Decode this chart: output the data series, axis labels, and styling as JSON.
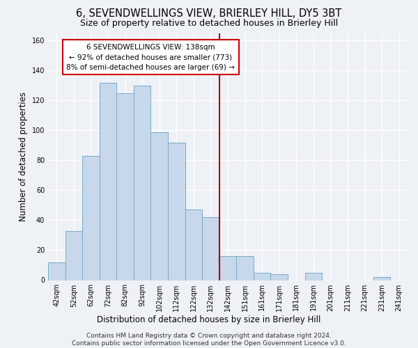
{
  "title": "6, SEVENDWELLINGS VIEW, BRIERLEY HILL, DY5 3BT",
  "subtitle": "Size of property relative to detached houses in Brierley Hill",
  "xlabel": "Distribution of detached houses by size in Brierley Hill",
  "ylabel": "Number of detached properties",
  "bar_color": "#c8d8eb",
  "bar_edge_color": "#7aaac8",
  "categories": [
    "42sqm",
    "52sqm",
    "62sqm",
    "72sqm",
    "82sqm",
    "92sqm",
    "102sqm",
    "112sqm",
    "122sqm",
    "132sqm",
    "142sqm",
    "151sqm",
    "161sqm",
    "171sqm",
    "181sqm",
    "191sqm",
    "201sqm",
    "211sqm",
    "221sqm",
    "231sqm",
    "241sqm"
  ],
  "values": [
    12,
    33,
    83,
    132,
    125,
    130,
    99,
    92,
    47,
    42,
    16,
    16,
    5,
    4,
    0,
    5,
    0,
    0,
    0,
    2,
    0
  ],
  "vline_x_index": 9.5,
  "vline_color": "#aa0000",
  "annotation_text": "6 SEVENDWELLINGS VIEW: 138sqm\n← 92% of detached houses are smaller (773)\n8% of semi-detached houses are larger (69) →",
  "annotation_box_color": "#ffffff",
  "annotation_box_edge": "#cc0000",
  "ylim": [
    0,
    165
  ],
  "yticks": [
    0,
    20,
    40,
    60,
    80,
    100,
    120,
    140,
    160
  ],
  "footer": "Contains HM Land Registry data © Crown copyright and database right 2024.\nContains public sector information licensed under the Open Government Licence v3.0.",
  "background_color": "#eef2f7",
  "grid_color": "#ffffff",
  "title_fontsize": 10.5,
  "subtitle_fontsize": 9,
  "axis_label_fontsize": 8.5,
  "tick_fontsize": 7,
  "footer_fontsize": 6.5,
  "annotation_fontsize": 7.5
}
